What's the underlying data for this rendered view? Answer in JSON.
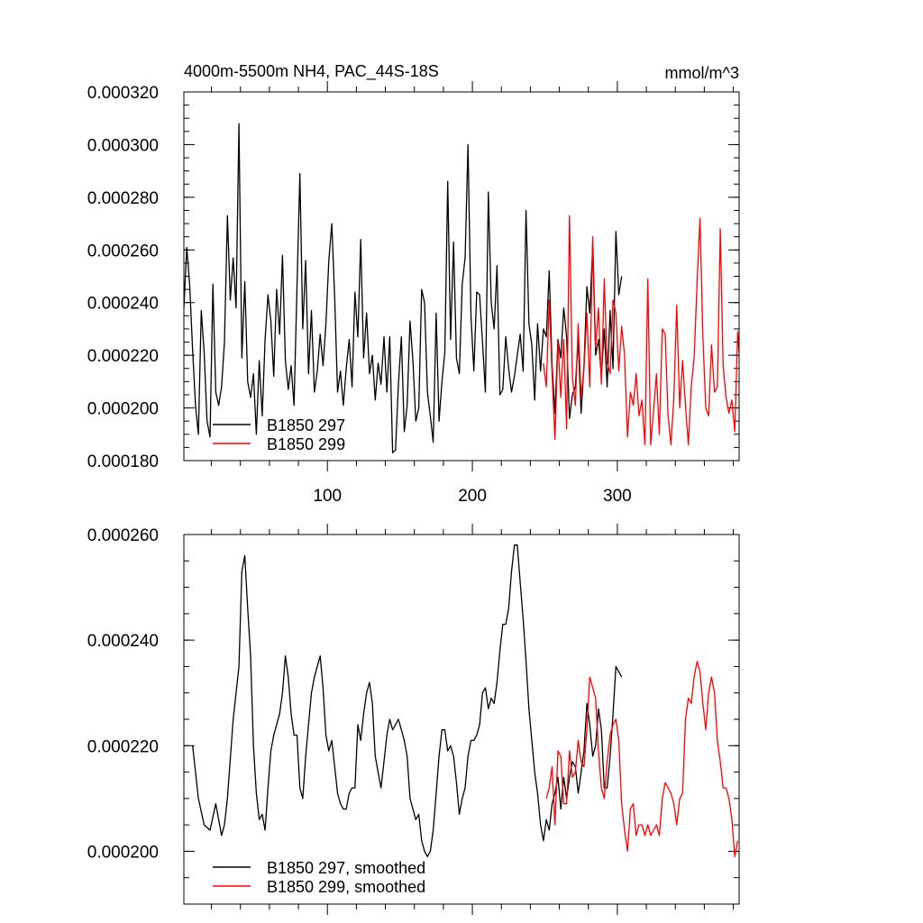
{
  "chart_data": [
    {
      "type": "line",
      "title": "4000m-5500m NH4, PAC_44S-18S",
      "units": "mmol/m^3",
      "xlim": [
        1,
        384
      ],
      "ylim": [
        0.00018,
        0.00032
      ],
      "xticks": [
        100,
        200,
        300
      ],
      "xtick_labels": [
        "100",
        "200",
        "300"
      ],
      "yticks": [
        0.00018,
        0.0002,
        0.00022,
        0.00024,
        0.00026,
        0.00028,
        0.0003,
        0.00032
      ],
      "ytick_labels": [
        "0.000180",
        "0.000200",
        "0.000220",
        "0.000240",
        "0.000260",
        "0.000280",
        "0.000300",
        "0.000320"
      ],
      "legend_position": "bottom-left",
      "series": [
        {
          "name": "B1850 297",
          "color": "#000000",
          "x": [
            1,
            3,
            5,
            7,
            9,
            11,
            13,
            15,
            17,
            19,
            21,
            23,
            25,
            27,
            29,
            31,
            33,
            35,
            37,
            39,
            41,
            43,
            45,
            47,
            49,
            51,
            53,
            55,
            57,
            59,
            61,
            63,
            65,
            67,
            69,
            71,
            73,
            75,
            77,
            79,
            81,
            83,
            85,
            87,
            89,
            91,
            93,
            95,
            97,
            99,
            101,
            103,
            105,
            107,
            109,
            111,
            113,
            115,
            117,
            119,
            121,
            123,
            125,
            127,
            129,
            131,
            133,
            135,
            137,
            139,
            141,
            143,
            145,
            147,
            149,
            151,
            153,
            155,
            157,
            159,
            161,
            163,
            165,
            167,
            169,
            171,
            173,
            175,
            177,
            179,
            181,
            183,
            185,
            187,
            189,
            191,
            193,
            195,
            197,
            199,
            201,
            203,
            205,
            207,
            209,
            211,
            213,
            215,
            217,
            219,
            221,
            223,
            225,
            227,
            229,
            231,
            233,
            235,
            237,
            239,
            241,
            243,
            245,
            247,
            249,
            251,
            253,
            255,
            257,
            259,
            261,
            263,
            265,
            267,
            269,
            271,
            273,
            275,
            277,
            279,
            281,
            283,
            285,
            287,
            289,
            291,
            293,
            295,
            297,
            299,
            301,
            303
          ],
          "values": [
            0.000238,
            0.000261,
            0.000247,
            0.000222,
            0.000201,
            0.00019,
            0.000237,
            0.000221,
            0.000195,
            0.000189,
            0.000247,
            0.000206,
            0.000201,
            0.000208,
            0.000225,
            0.000273,
            0.000241,
            0.000257,
            0.000238,
            0.000308,
            0.000219,
            0.000248,
            0.00021,
            0.000204,
            0.000213,
            0.00019,
            0.000218,
            0.000197,
            0.000226,
            0.000243,
            0.000233,
            0.000212,
            0.000245,
            0.000228,
            0.000258,
            0.000218,
            0.000207,
            0.000216,
            0.000201,
            0.000246,
            0.000289,
            0.00023,
            0.000256,
            0.000213,
            0.000237,
            0.000206,
            0.000214,
            0.000228,
            0.000216,
            0.000232,
            0.000256,
            0.00027,
            0.000242,
            0.000206,
            0.000214,
            0.000201,
            0.000215,
            0.000226,
            0.000208,
            0.000244,
            0.000227,
            0.000264,
            0.000219,
            0.000236,
            0.000213,
            0.00022,
            0.000203,
            0.000217,
            0.000209,
            0.000227,
            0.000206,
            0.000227,
            0.000183,
            0.000184,
            0.000209,
            0.000227,
            0.000191,
            0.000201,
            0.000233,
            0.000218,
            0.000195,
            0.0002,
            0.000245,
            0.00024,
            0.000206,
            0.000197,
            0.000187,
            0.000236,
            0.000195,
            0.00021,
            0.000221,
            0.000286,
            0.000226,
            0.000263,
            0.000219,
            0.000213,
            0.000247,
            0.000257,
            0.0003,
            0.000235,
            0.000214,
            0.000244,
            0.000243,
            0.000225,
            0.000206,
            0.000282,
            0.00024,
            0.00023,
            0.000254,
            0.000205,
            0.000207,
            0.000227,
            0.000215,
            0.000206,
            0.000212,
            0.00022,
            0.000228,
            0.000214,
            0.000275,
            0.000232,
            0.000224,
            0.000203,
            0.000232,
            0.000214,
            0.00023,
            0.000227,
            0.000252,
            0.000216,
            0.000198,
            0.000226,
            0.000219,
            0.000238,
            0.000227,
            0.000196,
            0.000205,
            0.000208,
            0.000226,
            0.000198,
            0.000216,
            0.000246,
            0.000236,
            0.000262,
            0.00022,
            0.000226,
            0.000212,
            0.00023,
            0.000208,
            0.000237,
            0.000215,
            0.000267,
            0.000243,
            0.00025
          ]
        },
        {
          "name": "B1850 299",
          "color": "#ff0000",
          "x": [
            249,
            251,
            253,
            255,
            257,
            259,
            261,
            263,
            265,
            267,
            269,
            271,
            273,
            275,
            277,
            279,
            281,
            283,
            285,
            287,
            289,
            291,
            293,
            295,
            297,
            299,
            301,
            303,
            305,
            307,
            309,
            311,
            313,
            315,
            317,
            319,
            321,
            323,
            325,
            327,
            329,
            331,
            333,
            335,
            337,
            339,
            341,
            343,
            345,
            347,
            349,
            351,
            353,
            355,
            357,
            359,
            361,
            363,
            365,
            367,
            369,
            371,
            373,
            375,
            377,
            379,
            381,
            383,
            384
          ],
          "values": [
            0.000217,
            0.000208,
            0.000241,
            0.000213,
            0.000188,
            0.000225,
            0.000204,
            0.000226,
            0.000192,
            0.000273,
            0.000212,
            0.000201,
            0.000232,
            0.000204,
            0.000215,
            0.000236,
            0.000208,
            0.000265,
            0.000223,
            0.000238,
            0.000209,
            0.000249,
            0.000217,
            0.000213,
            0.000241,
            0.000236,
            0.000214,
            0.000231,
            0.00022,
            0.000189,
            0.000206,
            0.000201,
            0.000213,
            0.000197,
            0.000203,
            0.000186,
            0.000249,
            0.000186,
            0.000199,
            0.000213,
            0.00019,
            0.00023,
            0.000228,
            0.000197,
            0.000186,
            0.000204,
            0.000239,
            0.0002,
            0.000218,
            0.000201,
            0.000186,
            0.000208,
            0.000219,
            0.000248,
            0.000272,
            0.000227,
            0.0002,
            0.000197,
            0.000224,
            0.000206,
            0.000208,
            0.000268,
            0.000216,
            0.000204,
            0.000198,
            0.000203,
            0.000191,
            0.000229,
            0.000221
          ]
        }
      ]
    },
    {
      "type": "line",
      "xlim": [
        1,
        384
      ],
      "ylim": [
        0.00019,
        0.00026
      ],
      "xticks": [
        100,
        200,
        300
      ],
      "yticks": [
        0.0002,
        0.00022,
        0.00024,
        0.00026
      ],
      "ytick_labels": [
        "0.000200",
        "0.000220",
        "0.000240",
        "0.000260"
      ],
      "legend_position": "bottom-left",
      "series": [
        {
          "name": "B1850 297, smoothed",
          "color": "#000000",
          "x": [
            7,
            11,
            15,
            19,
            23,
            27,
            29,
            31,
            35,
            39,
            41,
            43,
            45,
            47,
            49,
            51,
            53,
            55,
            57,
            59,
            61,
            63,
            67,
            69,
            71,
            73,
            75,
            77,
            79,
            81,
            83,
            85,
            87,
            89,
            91,
            93,
            95,
            97,
            99,
            101,
            103,
            105,
            107,
            109,
            111,
            113,
            115,
            117,
            119,
            121,
            123,
            125,
            127,
            129,
            131,
            133,
            135,
            137,
            139,
            141,
            143,
            145,
            147,
            149,
            151,
            153,
            155,
            157,
            159,
            161,
            163,
            165,
            167,
            169,
            171,
            173,
            175,
            177,
            179,
            181,
            183,
            185,
            187,
            189,
            191,
            193,
            195,
            197,
            199,
            201,
            203,
            205,
            207,
            209,
            211,
            213,
            215,
            217,
            219,
            221,
            223,
            225,
            227,
            229,
            231,
            233,
            235,
            237,
            239,
            241,
            243,
            245,
            247,
            249,
            251,
            253,
            255,
            257,
            259,
            261,
            263,
            265,
            267,
            269,
            271,
            273,
            275,
            277,
            279,
            281,
            283,
            285,
            287,
            289,
            291,
            293,
            295,
            297,
            299,
            301,
            303
          ],
          "values": [
            0.00022,
            0.00021,
            0.000205,
            0.000204,
            0.000209,
            0.000203,
            0.000205,
            0.00021,
            0.000225,
            0.000235,
            0.000253,
            0.000256,
            0.000246,
            0.000237,
            0.00022,
            0.000211,
            0.000206,
            0.000207,
            0.000204,
            0.000212,
            0.000219,
            0.000222,
            0.000226,
            0.00023,
            0.000237,
            0.000233,
            0.000226,
            0.000222,
            0.000222,
            0.000212,
            0.00021,
            0.000218,
            0.000224,
            0.00023,
            0.000233,
            0.000235,
            0.000237,
            0.000231,
            0.000222,
            0.000219,
            0.000221,
            0.000216,
            0.000211,
            0.000209,
            0.000208,
            0.000208,
            0.000211,
            0.000212,
            0.000212,
            0.000224,
            0.000221,
            0.000226,
            0.00023,
            0.000232,
            0.000228,
            0.000218,
            0.000215,
            0.000212,
            0.000217,
            0.000222,
            0.000225,
            0.000223,
            0.000224,
            0.000225,
            0.000223,
            0.000221,
            0.000218,
            0.00021,
            0.000208,
            0.000206,
            0.000207,
            0.000202,
            0.0002,
            0.000199,
            0.0002,
            0.000204,
            0.000211,
            0.000218,
            0.000223,
            0.000223,
            0.000219,
            0.00022,
            0.000218,
            0.000213,
            0.000207,
            0.00021,
            0.000212,
            0.000218,
            0.000221,
            0.000221,
            0.000222,
            0.000224,
            0.00023,
            0.000231,
            0.000227,
            0.000229,
            0.000228,
            0.000232,
            0.000238,
            0.000243,
            0.000243,
            0.000246,
            0.000253,
            0.000258,
            0.000258,
            0.000251,
            0.000244,
            0.000236,
            0.000227,
            0.000221,
            0.000215,
            0.000211,
            0.000205,
            0.000202,
            0.000206,
            0.000204,
            0.000209,
            0.000211,
            0.000214,
            0.000208,
            0.000214,
            0.00021,
            0.000214,
            0.000217,
            0.000216,
            0.000211,
            0.000215,
            0.000219,
            0.000228,
            0.000224,
            0.000218,
            0.00022,
            0.000227,
            0.000223,
            0.000212,
            0.000212,
            0.000218,
            0.000226,
            0.000235,
            0.000234,
            0.000233
          ]
        },
        {
          "name": "B1850 299, smoothed",
          "color": "#ff0000",
          "x": [
            251,
            253,
            255,
            257,
            259,
            261,
            263,
            265,
            267,
            269,
            271,
            273,
            275,
            277,
            279,
            281,
            283,
            285,
            287,
            289,
            291,
            293,
            295,
            297,
            299,
            301,
            303,
            305,
            307,
            309,
            311,
            313,
            315,
            317,
            319,
            321,
            323,
            325,
            327,
            329,
            331,
            333,
            335,
            337,
            339,
            341,
            343,
            345,
            347,
            349,
            351,
            353,
            355,
            357,
            359,
            361,
            363,
            365,
            367,
            369,
            371,
            373,
            375,
            377,
            379,
            381,
            383
          ],
          "values": [
            0.00021,
            0.000212,
            0.000216,
            0.000205,
            0.000219,
            0.000218,
            0.000209,
            0.000209,
            0.000219,
            0.000214,
            0.000215,
            0.000221,
            0.000217,
            0.000216,
            0.000223,
            0.000233,
            0.000231,
            0.000229,
            0.000219,
            0.000212,
            0.00021,
            0.000217,
            0.000222,
            0.000224,
            0.000225,
            0.000221,
            0.000209,
            0.000204,
            0.0002,
            0.000208,
            0.000209,
            0.000203,
            0.000205,
            0.000205,
            0.000203,
            0.000205,
            0.000203,
            0.000204,
            0.000205,
            0.000203,
            0.00021,
            0.000213,
            0.000212,
            0.000211,
            0.000209,
            0.000205,
            0.00021,
            0.000211,
            0.000225,
            0.000229,
            0.000228,
            0.000233,
            0.000236,
            0.000234,
            0.000228,
            0.000223,
            0.00023,
            0.000233,
            0.00023,
            0.000221,
            0.000217,
            0.000212,
            0.000212,
            0.00021,
            0.000206,
            0.000199,
            0.000202
          ]
        }
      ]
    }
  ]
}
